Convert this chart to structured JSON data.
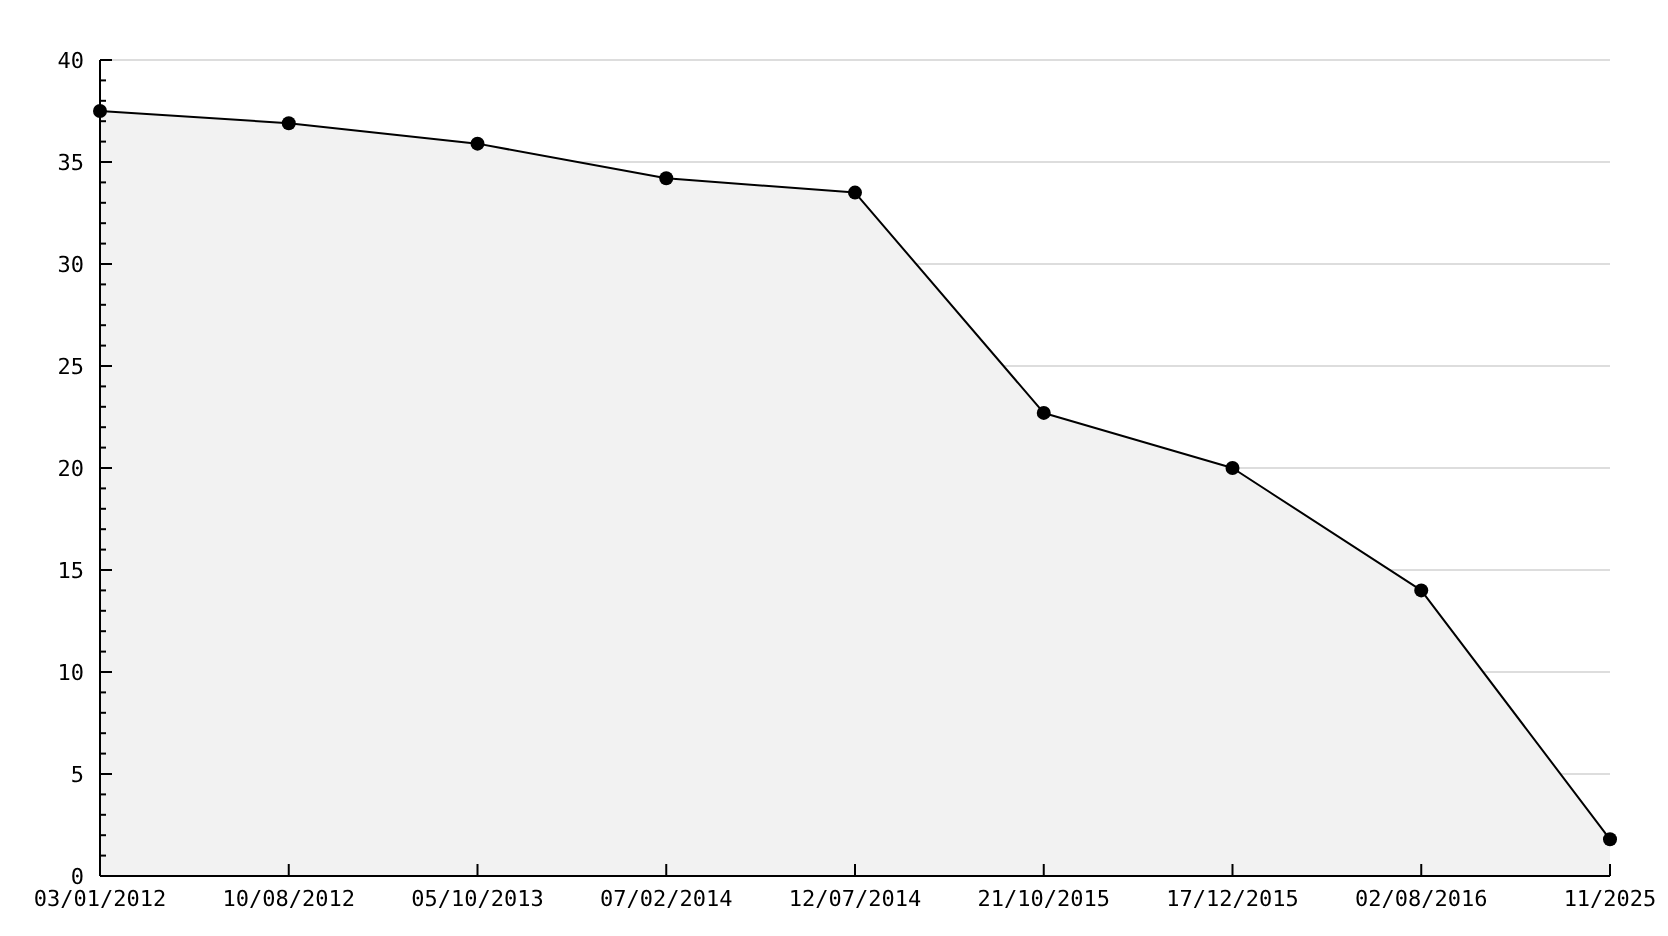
{
  "chart_data": {
    "type": "area",
    "categories": [
      "03/01/2012",
      "10/08/2012",
      "05/10/2013",
      "07/02/2014",
      "12/07/2014",
      "21/10/2015",
      "17/12/2015",
      "02/08/2016",
      "11/2025"
    ],
    "series": [
      {
        "color": "#000000",
        "values": [
          37.5,
          36.9,
          35.9,
          34.2,
          33.5,
          22.7,
          20.0,
          14.0,
          1.8
        ]
      }
    ],
    "ylim": [
      0,
      40
    ],
    "yticks": [
      0,
      {
        "value": 1,
        "label": null
      },
      {
        "value": 2,
        "label": null
      },
      {
        "value": 3,
        "label": null
      },
      {
        "value": 4,
        "label": null
      },
      5,
      {
        "value": 6,
        "label": null
      },
      {
        "value": 7,
        "label": null
      },
      {
        "value": 8,
        "label": null
      },
      {
        "value": 9,
        "label": null
      },
      10,
      {
        "value": 11,
        "label": null
      },
      {
        "value": 12,
        "label": null
      },
      {
        "value": 13,
        "label": null
      },
      {
        "value": 14,
        "label": null
      },
      15,
      {
        "value": 16,
        "label": null
      },
      {
        "value": 17,
        "label": null
      },
      {
        "value": 18,
        "label": null
      },
      {
        "value": 19,
        "label": null
      },
      20,
      {
        "value": 21,
        "label": null
      },
      {
        "value": 22,
        "label": null
      },
      {
        "value": 23,
        "label": null
      },
      {
        "value": 24,
        "label": null
      },
      25,
      {
        "value": 26,
        "label": null
      },
      {
        "value": 27,
        "label": null
      },
      {
        "value": 28,
        "label": null
      },
      {
        "value": 29,
        "label": null
      },
      30,
      {
        "value": 31,
        "label": null
      },
      {
        "value": 32,
        "label": null
      },
      {
        "value": 33,
        "label": null
      },
      {
        "value": 34,
        "label": null
      },
      35,
      {
        "value": 36,
        "label": null
      },
      {
        "value": 37,
        "label": null
      },
      {
        "value": 38,
        "label": null
      },
      {
        "value": 39,
        "label": null
      },
      40
    ],
    "grid": "y",
    "marker": "circle",
    "line_style": "solid"
  }
}
